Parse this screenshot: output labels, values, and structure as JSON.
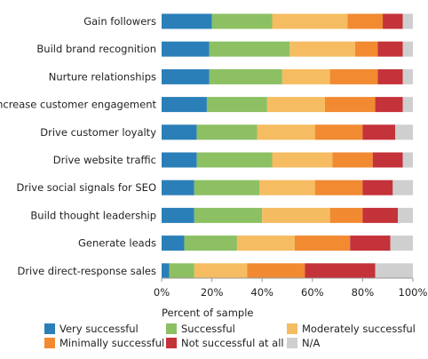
{
  "chart_data": {
    "type": "bar",
    "orientation": "horizontal",
    "stacked": true,
    "categories": [
      "Gain followers",
      "Build brand recognition",
      "Nurture relationships",
      "Increase customer engagement",
      "Drive customer loyalty",
      "Drive website traffic",
      "Drive social signals for SEO",
      "Build thought leadership",
      "Generate leads",
      "Drive direct-response sales"
    ],
    "series": [
      {
        "name": "Very successful",
        "color": "#2b7fb8",
        "values": [
          20,
          19,
          19,
          18,
          14,
          14,
          13,
          13,
          9,
          3
        ]
      },
      {
        "name": "Successful",
        "color": "#8cc063",
        "values": [
          24,
          32,
          29,
          24,
          24,
          30,
          26,
          27,
          21,
          10
        ]
      },
      {
        "name": "Moderately successful",
        "color": "#f6bc61",
        "values": [
          30,
          26,
          19,
          23,
          23,
          24,
          22,
          27,
          23,
          21
        ]
      },
      {
        "name": "Minimally successful",
        "color": "#f18a31",
        "values": [
          14,
          9,
          19,
          20,
          19,
          16,
          19,
          13,
          22,
          23
        ]
      },
      {
        "name": "Not successful at all",
        "color": "#c4323a",
        "values": [
          8,
          10,
          10,
          11,
          13,
          12,
          12,
          14,
          16,
          28
        ]
      },
      {
        "name": "N/A",
        "color": "#cfcfcf",
        "values": [
          4,
          4,
          4,
          4,
          7,
          4,
          8,
          6,
          9,
          15
        ]
      }
    ],
    "xlabel": "Percent of sample",
    "ylabel": "",
    "xlim": [
      0,
      100
    ],
    "xticks": [
      "0%",
      "20%",
      "40%",
      "60%",
      "80%",
      "100%"
    ],
    "grid": false,
    "legend_position": "bottom"
  }
}
